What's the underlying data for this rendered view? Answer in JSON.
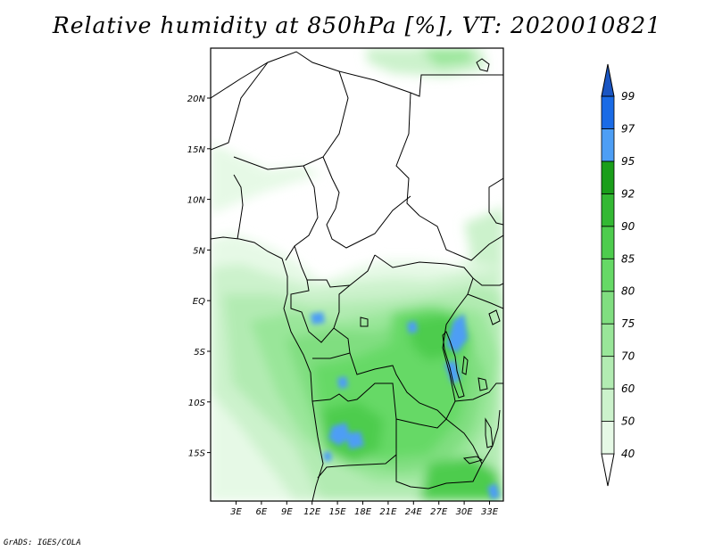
{
  "title": "Relative humidity at 850hPa [%], VT: 2020010821",
  "credit": "GrADS: IGES/COLA",
  "lat_ticks": [
    "20N",
    "15N",
    "10N",
    "5N",
    "EQ",
    "5S",
    "10S",
    "15S"
  ],
  "lon_ticks": [
    "3E",
    "6E",
    "9E",
    "12E",
    "15E",
    "18E",
    "21E",
    "24E",
    "27E",
    "30E",
    "33E"
  ],
  "colorbar": {
    "levels": [
      "40",
      "50",
      "60",
      "70",
      "75",
      "80",
      "85",
      "90",
      "92",
      "95",
      "97",
      "99"
    ],
    "colors": [
      "#ffffff",
      "#e6f9e6",
      "#ccf2cc",
      "#b2ebb2",
      "#99e699",
      "#80de80",
      "#66d966",
      "#4dcc4d",
      "#33b833",
      "#1a9e1a",
      "#4d9ef5",
      "#1a6be6",
      "#1a55c2"
    ]
  }
}
